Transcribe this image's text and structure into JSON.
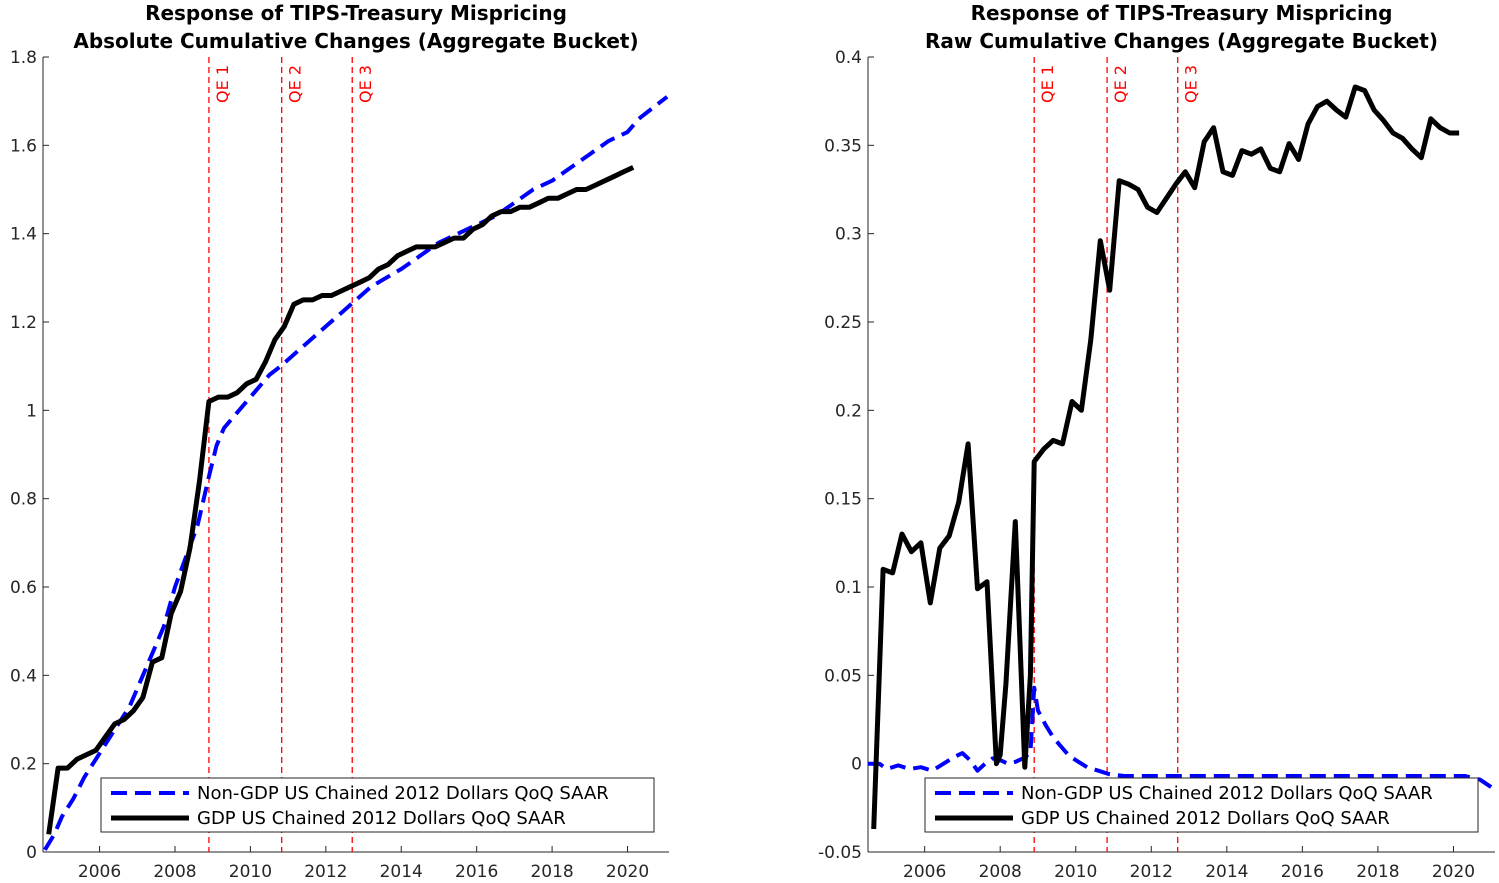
{
  "chart_data": [
    {
      "type": "line",
      "title_lines": [
        "Response of TIPS-Treasury Mispricing",
        "Absolute Cumulative Changes (Aggregate Bucket)"
      ],
      "xlim": [
        2004.5,
        2021.1
      ],
      "ylim": [
        0,
        1.8
      ],
      "xticks": [
        2006,
        2008,
        2010,
        2012,
        2014,
        2016,
        2018,
        2020
      ],
      "yticks": [
        0,
        0.2,
        0.4,
        0.6,
        0.8,
        1,
        1.2,
        1.4,
        1.6,
        1.8
      ],
      "ytick_labels": [
        "0",
        "0.2",
        "0.4",
        "0.6",
        "0.8",
        "1",
        "1.2",
        "1.4",
        "1.6",
        "1.8"
      ],
      "qe_lines": [
        {
          "label": "QE 1",
          "x": 2008.9
        },
        {
          "label": "QE 2",
          "x": 2010.83
        },
        {
          "label": "QE 3",
          "x": 2012.7
        }
      ],
      "legend_position": "bottom-right",
      "series": [
        {
          "name": "Non-GDP US Chained 2012 Dollars QoQ SAAR",
          "style": "dashed",
          "color": "#0000ff",
          "x": [
            2004.55,
            2004.8,
            2005.0,
            2005.3,
            2005.6,
            2005.9,
            2006.2,
            2006.5,
            2006.8,
            2007.1,
            2007.4,
            2007.7,
            2008.0,
            2008.3,
            2008.6,
            2008.9,
            2009.1,
            2009.3,
            2009.6,
            2009.9,
            2010.2,
            2010.5,
            2010.8,
            2011.2,
            2011.6,
            2012.0,
            2012.4,
            2012.8,
            2013.2,
            2013.6,
            2014.0,
            2014.5,
            2015.0,
            2015.5,
            2016.0,
            2016.5,
            2017.0,
            2017.5,
            2018.0,
            2018.5,
            2019.0,
            2019.5,
            2020.0,
            2020.3,
            2020.6,
            2021.05
          ],
          "y": [
            0.005,
            0.04,
            0.08,
            0.12,
            0.17,
            0.21,
            0.25,
            0.29,
            0.33,
            0.39,
            0.45,
            0.51,
            0.6,
            0.67,
            0.74,
            0.85,
            0.92,
            0.96,
            0.99,
            1.02,
            1.05,
            1.08,
            1.1,
            1.13,
            1.16,
            1.19,
            1.22,
            1.25,
            1.28,
            1.3,
            1.32,
            1.35,
            1.38,
            1.4,
            1.42,
            1.44,
            1.47,
            1.5,
            1.52,
            1.55,
            1.58,
            1.61,
            1.63,
            1.66,
            1.68,
            1.71
          ]
        },
        {
          "name": "GDP US Chained 2012 Dollars QoQ SAAR",
          "style": "solid",
          "color": "#000000",
          "x": [
            2004.65,
            2004.9,
            2005.15,
            2005.4,
            2005.65,
            2005.9,
            2006.15,
            2006.4,
            2006.65,
            2006.9,
            2007.15,
            2007.4,
            2007.65,
            2007.9,
            2008.15,
            2008.4,
            2008.65,
            2008.9,
            2009.15,
            2009.4,
            2009.65,
            2009.9,
            2010.15,
            2010.4,
            2010.65,
            2010.9,
            2011.15,
            2011.4,
            2011.65,
            2011.9,
            2012.15,
            2012.4,
            2012.65,
            2012.9,
            2013.15,
            2013.4,
            2013.65,
            2013.9,
            2014.15,
            2014.4,
            2014.65,
            2014.9,
            2015.15,
            2015.4,
            2015.65,
            2015.9,
            2016.15,
            2016.4,
            2016.65,
            2016.9,
            2017.15,
            2017.4,
            2017.65,
            2017.9,
            2018.15,
            2018.4,
            2018.65,
            2018.9,
            2019.15,
            2019.4,
            2019.65,
            2019.9,
            2020.15
          ],
          "y": [
            0.04,
            0.19,
            0.19,
            0.21,
            0.22,
            0.23,
            0.26,
            0.29,
            0.3,
            0.32,
            0.35,
            0.43,
            0.44,
            0.54,
            0.59,
            0.69,
            0.84,
            1.02,
            1.03,
            1.03,
            1.04,
            1.06,
            1.07,
            1.11,
            1.16,
            1.19,
            1.24,
            1.25,
            1.25,
            1.26,
            1.26,
            1.27,
            1.28,
            1.29,
            1.3,
            1.32,
            1.33,
            1.35,
            1.36,
            1.37,
            1.37,
            1.37,
            1.38,
            1.39,
            1.39,
            1.41,
            1.42,
            1.44,
            1.45,
            1.45,
            1.46,
            1.46,
            1.47,
            1.48,
            1.48,
            1.49,
            1.5,
            1.5,
            1.51,
            1.52,
            1.53,
            1.54,
            1.55
          ]
        }
      ]
    },
    {
      "type": "line",
      "title_lines": [
        "Response of TIPS-Treasury Mispricing",
        "Raw Cumulative Changes (Aggregate Bucket)"
      ],
      "xlim": [
        2004.5,
        2021.1
      ],
      "ylim": [
        -0.05,
        0.4
      ],
      "xticks": [
        2006,
        2008,
        2010,
        2012,
        2014,
        2016,
        2018,
        2020
      ],
      "yticks": [
        -0.05,
        0,
        0.05,
        0.1,
        0.15,
        0.2,
        0.25,
        0.3,
        0.35,
        0.4
      ],
      "ytick_labels": [
        "-0.05",
        "0",
        "0.05",
        "0.1",
        "0.15",
        "0.2",
        "0.25",
        "0.3",
        "0.35",
        "0.4"
      ],
      "qe_lines": [
        {
          "label": "QE 1",
          "x": 2008.9
        },
        {
          "label": "QE 2",
          "x": 2010.83
        },
        {
          "label": "QE 3",
          "x": 2012.7
        }
      ],
      "legend_position": "bottom-right",
      "series": [
        {
          "name": "Non-GDP US Chained 2012 Dollars QoQ SAAR",
          "style": "dashed",
          "color": "#0000ff",
          "x": [
            2004.5,
            2004.8,
            2005.0,
            2005.3,
            2005.6,
            2005.9,
            2006.2,
            2006.5,
            2006.8,
            2007.0,
            2007.2,
            2007.4,
            2007.6,
            2007.8,
            2008.0,
            2008.2,
            2008.4,
            2008.6,
            2008.8,
            2008.9,
            2009.0,
            2009.2,
            2009.4,
            2009.6,
            2009.8,
            2010.0,
            2010.3,
            2010.6,
            2010.9,
            2011.3,
            2011.8,
            2012.3,
            2012.8,
            2013.5,
            2014.5,
            2015.5,
            2016.5,
            2017.5,
            2018.5,
            2019.5,
            2020.3,
            2020.7,
            2021.05
          ],
          "y": [
            0.0,
            0.0,
            -0.003,
            -0.001,
            -0.003,
            -0.002,
            -0.004,
            0.0,
            0.004,
            0.006,
            0.002,
            -0.004,
            0.0,
            0.003,
            0.002,
            0.0,
            0.001,
            0.003,
            0.006,
            0.043,
            0.03,
            0.022,
            0.015,
            0.01,
            0.005,
            0.002,
            -0.002,
            -0.004,
            -0.006,
            -0.007,
            -0.007,
            -0.007,
            -0.007,
            -0.007,
            -0.007,
            -0.007,
            -0.007,
            -0.007,
            -0.007,
            -0.007,
            -0.007,
            -0.009,
            -0.014
          ]
        },
        {
          "name": "GDP US Chained 2012 Dollars QoQ SAAR",
          "style": "solid",
          "color": "#000000",
          "x": [
            2004.65,
            2004.9,
            2005.15,
            2005.4,
            2005.65,
            2005.9,
            2006.15,
            2006.4,
            2006.65,
            2006.9,
            2007.15,
            2007.4,
            2007.65,
            2007.9,
            2008.0,
            2008.15,
            2008.4,
            2008.65,
            2008.8,
            2008.9,
            2009.15,
            2009.4,
            2009.65,
            2009.9,
            2010.15,
            2010.4,
            2010.65,
            2010.9,
            2011.15,
            2011.4,
            2011.65,
            2011.9,
            2012.15,
            2012.4,
            2012.65,
            2012.9,
            2013.15,
            2013.4,
            2013.65,
            2013.9,
            2014.15,
            2014.4,
            2014.65,
            2014.9,
            2015.15,
            2015.4,
            2015.65,
            2015.9,
            2016.15,
            2016.4,
            2016.65,
            2016.9,
            2017.15,
            2017.4,
            2017.65,
            2017.9,
            2018.15,
            2018.4,
            2018.65,
            2018.9,
            2019.15,
            2019.4,
            2019.65,
            2019.9,
            2020.15
          ],
          "y": [
            -0.037,
            0.11,
            0.108,
            0.13,
            0.12,
            0.125,
            0.091,
            0.122,
            0.129,
            0.148,
            0.181,
            0.099,
            0.103,
            0.0,
            0.005,
            0.045,
            0.137,
            -0.002,
            0.05,
            0.171,
            0.178,
            0.183,
            0.181,
            0.205,
            0.2,
            0.24,
            0.296,
            0.268,
            0.33,
            0.328,
            0.325,
            0.315,
            0.312,
            0.32,
            0.328,
            0.335,
            0.326,
            0.352,
            0.36,
            0.335,
            0.333,
            0.347,
            0.345,
            0.348,
            0.337,
            0.335,
            0.351,
            0.342,
            0.362,
            0.372,
            0.375,
            0.37,
            0.366,
            0.383,
            0.381,
            0.37,
            0.364,
            0.357,
            0.354,
            0.348,
            0.343,
            0.365,
            0.36,
            0.357,
            0.357
          ]
        }
      ]
    }
  ]
}
